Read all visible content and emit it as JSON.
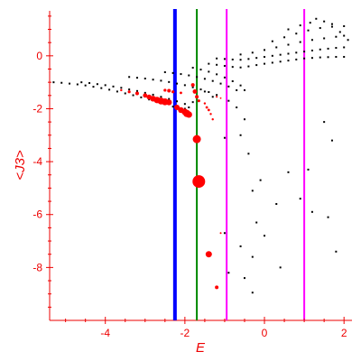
{
  "chart_data": {
    "type": "scatter",
    "title": "",
    "xlabel": "E",
    "ylabel": "<J3>",
    "xlim": [
      -5.4,
      2.2
    ],
    "ylim": [
      -10.0,
      1.7
    ],
    "grid": false,
    "axis_color": "#ee0000",
    "xticks": [
      -4,
      -2,
      0,
      2
    ],
    "xtick_labels": [
      "-4",
      "-2",
      "0",
      "2"
    ],
    "yticks": [
      0,
      -2,
      -4,
      -6,
      -8
    ],
    "ytick_labels": [
      "0",
      "-2",
      "-4",
      "-6",
      "-8"
    ],
    "vertical_lines": [
      {
        "x": -2.25,
        "color": "#0000ff"
      },
      {
        "x": -1.7,
        "color": "#008800"
      },
      {
        "x": -0.95,
        "color": "#ff00ff"
      },
      {
        "x": 1.0,
        "color": "#ff00ff"
      }
    ],
    "series": [
      {
        "color": "#000000",
        "style": "dots",
        "points": [
          [
            -5.3,
            -1.0
          ],
          [
            -5.1,
            -1.02
          ],
          [
            -4.9,
            -1.05
          ],
          [
            -4.7,
            -1.08
          ],
          [
            -4.5,
            -1.12
          ],
          [
            -4.3,
            -1.17
          ],
          [
            -4.1,
            -1.22
          ],
          [
            -3.9,
            -1.28
          ],
          [
            -3.7,
            -1.35
          ],
          [
            -3.5,
            -1.42
          ],
          [
            -3.3,
            -1.49
          ],
          [
            -3.1,
            -1.57
          ],
          [
            -2.9,
            -1.65
          ],
          [
            -2.7,
            -1.73
          ],
          [
            -2.5,
            -1.82
          ],
          [
            -2.3,
            -1.92
          ],
          [
            -4.6,
            -1.0
          ],
          [
            -4.4,
            -1.03
          ],
          [
            -4.2,
            -1.07
          ],
          [
            -4.0,
            -1.11
          ],
          [
            -3.8,
            -1.16
          ],
          [
            -3.6,
            -1.21
          ],
          [
            -3.4,
            -1.27
          ],
          [
            -3.2,
            -1.33
          ],
          [
            -3.0,
            -1.4
          ],
          [
            -2.8,
            -1.47
          ],
          [
            -2.6,
            -1.55
          ],
          [
            -2.4,
            -1.63
          ],
          [
            -2.2,
            -1.72
          ],
          [
            -2.0,
            -1.82
          ],
          [
            -3.4,
            -0.8
          ],
          [
            -3.2,
            -0.83
          ],
          [
            -3.0,
            -0.86
          ],
          [
            -2.8,
            -0.9
          ],
          [
            -2.6,
            -0.94
          ],
          [
            -2.4,
            -0.99
          ],
          [
            -2.2,
            -1.05
          ],
          [
            -2.0,
            -1.11
          ],
          [
            -1.8,
            -1.19
          ],
          [
            -1.6,
            -1.27
          ],
          [
            -1.4,
            -1.37
          ],
          [
            -1.2,
            -1.48
          ],
          [
            -2.5,
            -0.62
          ],
          [
            -2.3,
            -0.65
          ],
          [
            -2.1,
            -0.69
          ],
          [
            -1.9,
            -0.74
          ],
          [
            -1.7,
            -0.8
          ],
          [
            -1.5,
            -0.87
          ],
          [
            -1.3,
            -0.95
          ],
          [
            -1.1,
            -1.05
          ],
          [
            -0.9,
            -1.16
          ],
          [
            -0.7,
            -1.3
          ],
          [
            -1.8,
            -0.45
          ],
          [
            -1.6,
            -0.52
          ],
          [
            -1.4,
            -0.6
          ],
          [
            -1.2,
            -0.7
          ],
          [
            -1.0,
            -0.82
          ],
          [
            -0.8,
            -0.96
          ],
          [
            -0.6,
            -1.12
          ],
          [
            -0.5,
            -1.3
          ],
          [
            -1.4,
            -0.3
          ],
          [
            -1.2,
            -0.34
          ],
          [
            -1.0,
            -0.38
          ],
          [
            -0.8,
            -0.42
          ],
          [
            -0.6,
            -0.44
          ],
          [
            -0.4,
            -0.4
          ],
          [
            -0.2,
            -0.35
          ],
          [
            0.0,
            -0.3
          ],
          [
            0.2,
            -0.26
          ],
          [
            0.4,
            -0.22
          ],
          [
            0.6,
            -0.18
          ],
          [
            0.8,
            -0.14
          ],
          [
            1.0,
            -0.1
          ],
          [
            1.2,
            -0.08
          ],
          [
            1.4,
            -0.06
          ],
          [
            1.6,
            -0.05
          ],
          [
            1.8,
            -0.04
          ],
          [
            2.0,
            -0.04
          ],
          [
            -1.2,
            -0.1
          ],
          [
            -1.0,
            -0.12
          ],
          [
            -0.8,
            -0.14
          ],
          [
            -0.6,
            -0.15
          ],
          [
            -0.4,
            -0.12
          ],
          [
            -0.2,
            -0.08
          ],
          [
            0.0,
            -0.04
          ],
          [
            0.2,
            0.0
          ],
          [
            0.4,
            0.04
          ],
          [
            0.6,
            0.08
          ],
          [
            0.8,
            0.12
          ],
          [
            1.0,
            0.16
          ],
          [
            1.2,
            0.2
          ],
          [
            1.4,
            0.24
          ],
          [
            1.6,
            0.27
          ],
          [
            1.8,
            0.3
          ],
          [
            2.0,
            0.32
          ],
          [
            -0.6,
            0.05
          ],
          [
            -0.3,
            0.12
          ],
          [
            0.0,
            0.22
          ],
          [
            0.3,
            0.32
          ],
          [
            0.6,
            0.42
          ],
          [
            0.9,
            0.52
          ],
          [
            1.2,
            0.6
          ],
          [
            1.5,
            0.66
          ],
          [
            1.8,
            0.72
          ],
          [
            2.0,
            0.76
          ],
          [
            0.2,
            0.55
          ],
          [
            0.5,
            0.7
          ],
          [
            0.8,
            0.84
          ],
          [
            1.1,
            0.96
          ],
          [
            1.4,
            1.05
          ],
          [
            1.7,
            1.1
          ],
          [
            2.0,
            1.12
          ],
          [
            0.6,
            1.0
          ],
          [
            0.9,
            1.15
          ],
          [
            1.15,
            1.25
          ],
          [
            1.3,
            1.4
          ],
          [
            1.5,
            1.3
          ],
          [
            1.7,
            1.2
          ],
          [
            1.9,
            0.9
          ],
          [
            2.1,
            0.6
          ],
          [
            -2.0,
            -2.0
          ],
          [
            -1.9,
            -1.95
          ],
          [
            -1.8,
            -1.75
          ],
          [
            -1.5,
            -1.35
          ],
          [
            -1.3,
            -1.55
          ],
          [
            -0.9,
            -1.7
          ],
          [
            -0.7,
            -1.95
          ],
          [
            -0.5,
            -2.4
          ],
          [
            -0.6,
            -3.0
          ],
          [
            -0.4,
            -3.7
          ],
          [
            -1.0,
            -3.1
          ],
          [
            -0.1,
            -4.7
          ],
          [
            -0.3,
            -5.1
          ],
          [
            0.3,
            -5.6
          ],
          [
            0.6,
            -4.4
          ],
          [
            0.9,
            -5.4
          ],
          [
            1.2,
            -5.9
          ],
          [
            1.1,
            -4.3
          ],
          [
            1.6,
            -6.1
          ],
          [
            1.5,
            -2.5
          ],
          [
            1.7,
            -3.2
          ],
          [
            -0.2,
            -6.3
          ],
          [
            0.0,
            -6.8
          ],
          [
            -0.6,
            -7.2
          ],
          [
            -0.3,
            -7.6
          ],
          [
            0.4,
            -8.0
          ],
          [
            -0.5,
            -8.4
          ],
          [
            -0.9,
            -8.2
          ],
          [
            -0.3,
            -8.95
          ],
          [
            1.8,
            -7.4
          ],
          [
            -1.0,
            -6.7
          ]
        ]
      },
      {
        "color": "#ff0000",
        "style": "filled-circles",
        "points": [
          [
            -3.6,
            -1.3,
            1.2
          ],
          [
            -3.4,
            -1.36,
            1.6
          ],
          [
            -3.2,
            -1.42,
            2.0
          ],
          [
            -3.0,
            -1.5,
            2.4
          ],
          [
            -2.9,
            -1.56,
            2.8
          ],
          [
            -2.8,
            -1.62,
            3.2
          ],
          [
            -2.7,
            -1.67,
            3.6
          ],
          [
            -2.6,
            -1.71,
            3.8
          ],
          [
            -2.5,
            -1.74,
            3.8
          ],
          [
            -2.4,
            -1.76,
            3.2
          ],
          [
            -2.2,
            -1.95,
            3.0
          ],
          [
            -2.1,
            -2.05,
            3.2
          ],
          [
            -2.0,
            -2.12,
            3.6
          ],
          [
            -1.95,
            -2.18,
            4.0
          ],
          [
            -1.9,
            -2.22,
            3.6
          ],
          [
            -2.5,
            -1.3,
            1.6
          ],
          [
            -2.4,
            -1.32,
            2.0
          ],
          [
            -2.3,
            -1.36,
            1.6
          ],
          [
            -2.1,
            -1.4,
            1.4
          ],
          [
            -1.8,
            -1.1,
            2.0
          ],
          [
            -1.75,
            -1.35,
            2.4
          ],
          [
            -1.7,
            -1.55,
            2.0
          ],
          [
            -1.65,
            -1.7,
            1.6
          ],
          [
            -1.5,
            -1.8,
            1.2
          ],
          [
            -1.45,
            -1.95,
            1.4
          ],
          [
            -1.4,
            -2.05,
            1.4
          ],
          [
            -1.35,
            -2.2,
            1.2
          ],
          [
            -1.3,
            -2.4,
            1.2
          ],
          [
            -1.2,
            -1.55,
            1.0
          ],
          [
            -1.1,
            -1.6,
            0.9
          ],
          [
            -1.7,
            -3.15,
            4.5
          ],
          [
            -1.65,
            -4.75,
            7.0
          ],
          [
            -1.4,
            -7.5,
            3.5
          ],
          [
            -1.2,
            -8.75,
            2.0
          ],
          [
            -1.1,
            -6.7,
            1.0
          ]
        ]
      }
    ]
  }
}
